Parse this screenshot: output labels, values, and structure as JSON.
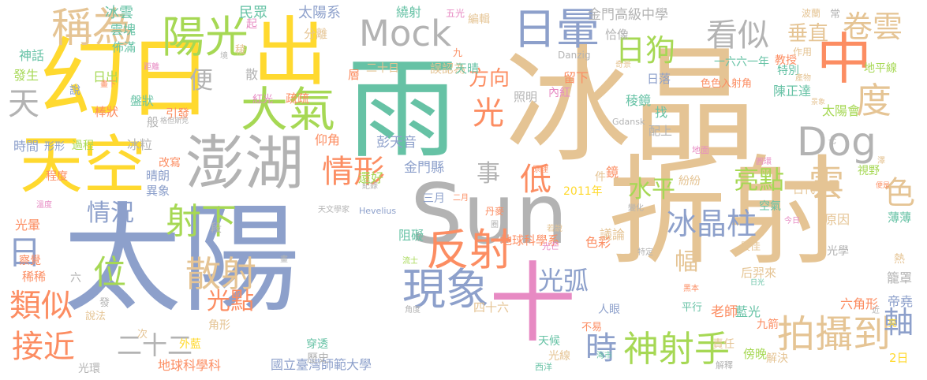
{
  "palette": {
    "tan": "#e5c494",
    "yellow": "#ffd92f",
    "green": "#a6d854",
    "pink": "#e78ac3",
    "blue": "#8da0cb",
    "teal": "#66c2a5",
    "orange": "#fc8d62",
    "gray": "#b3b3b3"
  },
  "words": [
    "冰晶",
    "太陽",
    "雨",
    "折射",
    "Sun",
    "幻日",
    "出",
    "天空",
    "澎湖",
    "中",
    "十",
    "大氣",
    "日暈",
    "陽光",
    "Mock",
    "Dog",
    "稱為",
    "現象",
    "反射",
    "神射手",
    "拍攝到",
    "散射",
    "情形",
    "射下",
    "度",
    "雲",
    "色",
    "冰晶柱",
    "看似",
    "卷雲",
    "日狗",
    "事",
    "光",
    "位",
    "情況",
    "類似",
    "接近",
    "垂直",
    "水平",
    "方向",
    "低",
    "亮點",
    "光弧",
    "光點",
    "二十二",
    "時",
    "日",
    "天",
    "幅",
    "軸",
    "金門高級中學",
    "金門縣",
    "彭天音",
    "國立臺灣師範大學",
    "地球科學系",
    "地球科學科",
    "冰雲",
    "太陽系",
    "民眾",
    "繞射",
    "編輯",
    "五光",
    "分離",
    "恰像",
    "留下",
    "雲塊",
    "佈滿",
    "神話",
    "發生",
    "距離",
    "日出",
    "盤狀",
    "棒狀",
    "時間",
    "形形",
    "過程",
    "冰粒",
    "仰角",
    "疏疏",
    "紅光",
    "照明",
    "內紅",
    "日落",
    "稜鏡",
    "找",
    "陳正達",
    "一六六一年",
    "色色入射角",
    "教授",
    "特別",
    "地平線",
    "太陽會",
    "引發",
    "便",
    "散",
    "層",
    "二十日",
    "誤認為",
    "九",
    "天晴",
    "光暈",
    "段",
    "阻礙",
    "2011年",
    "議論",
    "古代",
    "空氣",
    "視野",
    "原因",
    "薄薄",
    "熱",
    "籠罩",
    "帝堯",
    "六角形",
    "藍光",
    "九箭",
    "老師",
    "后羿來",
    "最佳",
    "光學",
    "人眼",
    "色彩",
    "平行",
    "責任",
    "傍晚",
    "解決",
    "2日",
    "穿透",
    "歷史",
    "光線",
    "天候",
    "不易",
    "西洋",
    "光環",
    "說法",
    "外藍",
    "角形",
    "發",
    "次",
    "四十六",
    "三月",
    "二月",
    "丹麥",
    "圈",
    "若說",
    "光芒",
    "流士",
    "Hevelius",
    "天文學家",
    "紀錄",
    "還好",
    "配上",
    "Danzig",
    "Gdansk",
    "地面",
    "圓環",
    "原理",
    "變化",
    "今日",
    "特定",
    "晴朗",
    "異象",
    "程度",
    "溫度",
    "察覺",
    "稀稀",
    "六",
    "般",
    "格但斯克",
    "改寫",
    "鏡",
    "件",
    "紛紛",
    "常",
    "波蘭",
    "作用",
    "產物",
    "景象",
    "奇景",
    "七",
    "澤",
    "便是",
    "近",
    "亮",
    "日光",
    "黑本",
    "海市",
    "解釋",
    "角度",
    "說",
    "畫下",
    "畫",
    "境",
    "稜",
    "起"
  ]
}
